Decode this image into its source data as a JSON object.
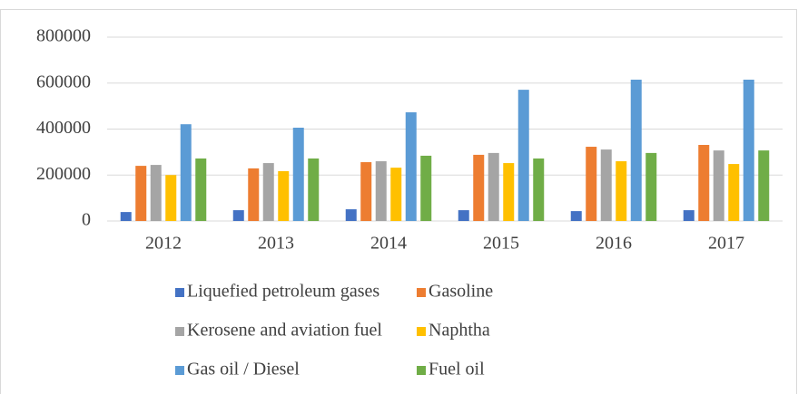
{
  "chart_data": {
    "type": "bar",
    "categories": [
      "2012",
      "2013",
      "2014",
      "2015",
      "2016",
      "2017"
    ],
    "series": [
      {
        "name": "Liquefied petroleum gases",
        "color": "#4472c4",
        "values": [
          39000,
          47000,
          51000,
          47000,
          43000,
          47000
        ]
      },
      {
        "name": "Gasoline",
        "color": "#ed7d31",
        "values": [
          240000,
          229000,
          256000,
          288000,
          323000,
          331000
        ]
      },
      {
        "name": "Kerosene and aviation fuel",
        "color": "#a5a5a5",
        "values": [
          244000,
          252000,
          260000,
          296000,
          311000,
          307000
        ]
      },
      {
        "name": "Naphtha",
        "color": "#ffc000",
        "values": [
          200000,
          217000,
          232000,
          252000,
          260000,
          248000
        ]
      },
      {
        "name": "Gas oil / Diesel",
        "color": "#5b9bd5",
        "values": [
          421000,
          406000,
          473000,
          571000,
          615000,
          615000
        ]
      },
      {
        "name": "Fuel oil",
        "color": "#70ad47",
        "values": [
          272000,
          272000,
          284000,
          272000,
          296000,
          307000
        ]
      }
    ],
    "ylim": [
      0,
      800000
    ],
    "yticks": [
      0,
      200000,
      400000,
      600000,
      800000
    ],
    "grid": true,
    "legend": "bottom"
  }
}
